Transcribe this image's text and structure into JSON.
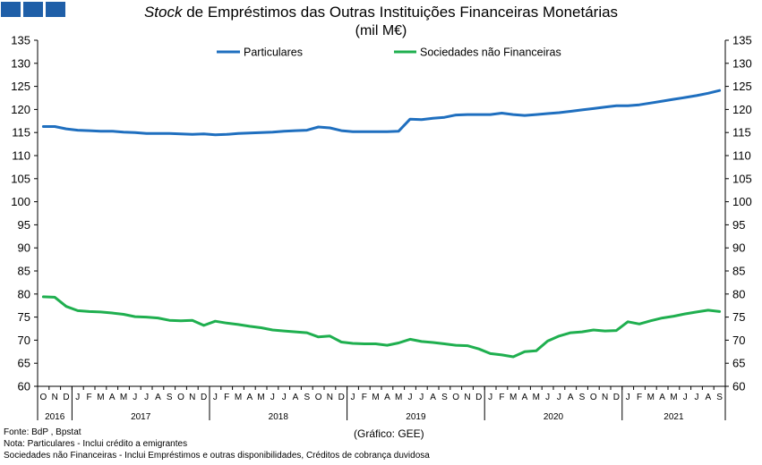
{
  "header": {
    "title_italic": "Stock",
    "title_rest": " de Empréstimos das Outras Instituições Financeiras Monetárias",
    "subtitle": "(mil M€)"
  },
  "footer": {
    "source": "Fonte: BdP , Bpstat",
    "note1": "Nota: Particulares - Inclui crédito a emigrantes",
    "note2": "Sociedades não Financeiras - Inclui Empréstimos e outras disponibilidades, Créditos de cobrança duvidosa",
    "credit": "(Gráfico: GEE)"
  },
  "colors": {
    "particulares": "#1f6fbf",
    "snf": "#1faf4f",
    "logo": "#1f5fa8"
  },
  "chart_data": {
    "type": "line",
    "title": "Stock de Empréstimos das Outras Instituições Financeiras Monetárias",
    "ylabel": "",
    "ylim": [
      60,
      135
    ],
    "yticks": [
      60,
      65,
      70,
      75,
      80,
      85,
      90,
      95,
      100,
      105,
      110,
      115,
      120,
      125,
      130,
      135
    ],
    "grid": false,
    "legend_position": "top",
    "month_labels": [
      "O",
      "N",
      "D",
      "J",
      "F",
      "M",
      "A",
      "M",
      "J",
      "J",
      "A",
      "S",
      "O",
      "N",
      "D",
      "J",
      "F",
      "M",
      "A",
      "M",
      "J",
      "J",
      "A",
      "S",
      "O",
      "N",
      "D",
      "J",
      "F",
      "M",
      "A",
      "M",
      "J",
      "J",
      "A",
      "S",
      "O",
      "N",
      "D",
      "J",
      "F",
      "M",
      "A",
      "M",
      "J",
      "J",
      "A",
      "S",
      "O",
      "N",
      "D",
      "J",
      "F",
      "M",
      "A",
      "M",
      "J",
      "J",
      "A",
      "S"
    ],
    "years": [
      {
        "label": "2016",
        "start": 0,
        "count": 3
      },
      {
        "label": "2017",
        "start": 3,
        "count": 12
      },
      {
        "label": "2018",
        "start": 15,
        "count": 12
      },
      {
        "label": "2019",
        "start": 27,
        "count": 12
      },
      {
        "label": "2020",
        "start": 39,
        "count": 12
      },
      {
        "label": "2021",
        "start": 51,
        "count": 9
      }
    ],
    "series": [
      {
        "name": "Particulares",
        "values": [
          116.3,
          116.3,
          115.8,
          115.5,
          115.4,
          115.3,
          115.3,
          115.1,
          115.0,
          114.8,
          114.8,
          114.8,
          114.7,
          114.6,
          114.7,
          114.5,
          114.6,
          114.8,
          114.9,
          115.0,
          115.1,
          115.3,
          115.4,
          115.5,
          116.2,
          116.0,
          115.4,
          115.2,
          115.2,
          115.2,
          115.2,
          115.3,
          117.9,
          117.8,
          118.1,
          118.3,
          118.8,
          118.9,
          118.9,
          118.9,
          119.2,
          118.9,
          118.7,
          118.9,
          119.1,
          119.3,
          119.6,
          119.9,
          120.2,
          120.5,
          120.8,
          120.8,
          121.0,
          121.4,
          121.8,
          122.2,
          122.6,
          123.0,
          123.5,
          124.1
        ]
      },
      {
        "name": "Sociedades não Financeiras",
        "values": [
          79.4,
          79.3,
          77.3,
          76.4,
          76.2,
          76.1,
          75.9,
          75.6,
          75.1,
          75.0,
          74.8,
          74.3,
          74.2,
          74.3,
          73.2,
          74.1,
          73.7,
          73.4,
          73.0,
          72.7,
          72.2,
          72.0,
          71.8,
          71.6,
          70.7,
          70.9,
          69.6,
          69.3,
          69.2,
          69.2,
          68.9,
          69.4,
          70.2,
          69.7,
          69.5,
          69.2,
          68.9,
          68.8,
          68.1,
          67.1,
          66.8,
          66.4,
          67.5,
          67.7,
          69.8,
          70.9,
          71.6,
          71.8,
          72.2,
          72.0,
          72.1,
          74.0,
          73.5,
          74.2,
          74.8,
          75.2,
          75.7,
          76.1,
          76.5,
          76.2
        ]
      }
    ]
  }
}
